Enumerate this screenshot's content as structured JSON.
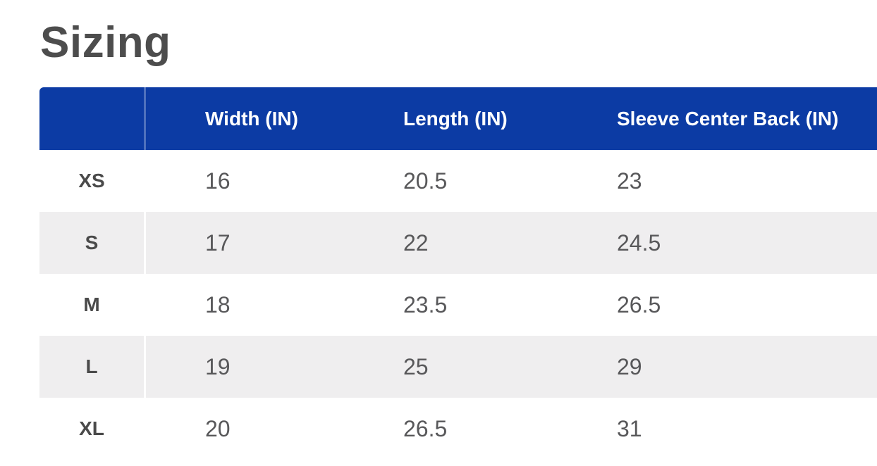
{
  "page": {
    "title": "Sizing"
  },
  "sizing_table": {
    "columns": [
      {
        "label": ""
      },
      {
        "label": "Width (IN)"
      },
      {
        "label": "Length (IN)"
      },
      {
        "label": "Sleeve Center Back (IN)"
      }
    ],
    "rows": [
      {
        "size": "XS",
        "width_in": "16",
        "length_in": "20.5",
        "sleeve_center_back_in": "23"
      },
      {
        "size": "S",
        "width_in": "17",
        "length_in": "22",
        "sleeve_center_back_in": "24.5"
      },
      {
        "size": "M",
        "width_in": "18",
        "length_in": "23.5",
        "sleeve_center_back_in": "26.5"
      },
      {
        "size": "L",
        "width_in": "19",
        "length_in": "25",
        "sleeve_center_back_in": "29"
      },
      {
        "size": "XL",
        "width_in": "20",
        "length_in": "26.5",
        "sleeve_center_back_in": "31"
      }
    ],
    "colors": {
      "header_bg": "#0C3BA4",
      "header_text": "#FFFFFF",
      "alt_row_bg": "#EFEEEF",
      "size_label_text": "#4A4A4A",
      "value_text": "#58585A",
      "title_text": "#4D4D4D"
    }
  }
}
